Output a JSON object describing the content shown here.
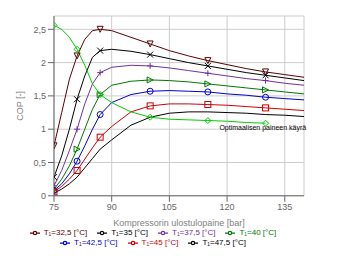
{
  "chart_data": {
    "type": "line",
    "xlabel": "Kompressorin ulostulopaine [bar]",
    "ylabel": "COP [-]",
    "xlim": [
      75,
      140
    ],
    "ylim": [
      0,
      2.7
    ],
    "xticks": [
      75,
      90,
      105,
      120,
      135
    ],
    "yticks": [
      0,
      {
        "value": 0.5,
        "label": "0,5"
      },
      1,
      {
        "value": 1.5,
        "label": "1,5"
      },
      2,
      {
        "value": 2.5,
        "label": "2,5"
      }
    ],
    "grid": true,
    "legend": "bottom",
    "series": [
      {
        "name": "T₁=32,5 [°C]",
        "color": "#5a0000",
        "marker": "triangle-down",
        "x": [
          75,
          77,
          79,
          81,
          83,
          85,
          87,
          90,
          95,
          100,
          105,
          110,
          115,
          120,
          125,
          130,
          135,
          140
        ],
        "values": [
          0.75,
          1.25,
          1.75,
          2.1,
          2.35,
          2.48,
          2.5,
          2.48,
          2.38,
          2.28,
          2.18,
          2.1,
          2.03,
          1.97,
          1.91,
          1.86,
          1.82,
          1.78
        ]
      },
      {
        "name": "T₁=35 [°C]",
        "color": "#000000",
        "marker": "x",
        "x": [
          75,
          77,
          79,
          81,
          83,
          85,
          87,
          90,
          95,
          100,
          105,
          110,
          115,
          120,
          125,
          130,
          135,
          140
        ],
        "values": [
          0.28,
          0.6,
          1.0,
          1.45,
          1.8,
          2.08,
          2.18,
          2.2,
          2.17,
          2.12,
          2.06,
          2.0,
          1.95,
          1.9,
          1.85,
          1.81,
          1.77,
          1.73
        ]
      },
      {
        "name": "T₁=37,5 [°C]",
        "color": "#7030a0",
        "marker": "plus",
        "x": [
          75,
          77,
          79,
          81,
          83,
          85,
          87,
          90,
          95,
          100,
          105,
          110,
          115,
          120,
          125,
          130,
          135,
          140
        ],
        "values": [
          0.15,
          0.38,
          0.68,
          1.0,
          1.38,
          1.68,
          1.85,
          1.93,
          1.96,
          1.95,
          1.92,
          1.88,
          1.84,
          1.8,
          1.76,
          1.73,
          1.69,
          1.66
        ]
      },
      {
        "name": "T₁=40 [°C]",
        "color": "#007700",
        "marker": "triangle-right",
        "x": [
          75,
          77,
          79,
          81,
          83,
          85,
          87,
          90,
          95,
          100,
          105,
          110,
          115,
          120,
          125,
          130,
          135,
          140
        ],
        "values": [
          0.1,
          0.25,
          0.45,
          0.7,
          1.0,
          1.3,
          1.52,
          1.66,
          1.72,
          1.74,
          1.73,
          1.71,
          1.68,
          1.65,
          1.62,
          1.59,
          1.56,
          1.53
        ]
      },
      {
        "name": "T₁=42,5 [°C]",
        "color": "#0000cc",
        "marker": "circle",
        "x": [
          75,
          77,
          79,
          81,
          83,
          85,
          87,
          90,
          95,
          100,
          105,
          110,
          115,
          120,
          125,
          130,
          135,
          140
        ],
        "values": [
          0.08,
          0.18,
          0.33,
          0.52,
          0.75,
          1.0,
          1.22,
          1.4,
          1.52,
          1.57,
          1.58,
          1.57,
          1.56,
          1.53,
          1.51,
          1.48,
          1.46,
          1.44
        ]
      },
      {
        "name": "T₁=45 [°C]",
        "color": "#cc0000",
        "marker": "square",
        "x": [
          75,
          77,
          79,
          81,
          83,
          85,
          87,
          90,
          95,
          100,
          105,
          110,
          115,
          120,
          125,
          130,
          135,
          140
        ],
        "values": [
          0.06,
          0.14,
          0.25,
          0.38,
          0.55,
          0.72,
          0.88,
          1.04,
          1.26,
          1.35,
          1.38,
          1.38,
          1.37,
          1.36,
          1.34,
          1.32,
          1.3,
          1.28
        ]
      },
      {
        "name": "T₁=47,5 [°C]",
        "color": "#000000",
        "marker": "none",
        "x": [
          75,
          77,
          79,
          81,
          83,
          85,
          87,
          90,
          95,
          100,
          105,
          110,
          115,
          120,
          125,
          130,
          135,
          140
        ],
        "values": [
          0.04,
          0.1,
          0.18,
          0.28,
          0.42,
          0.56,
          0.7,
          0.84,
          1.06,
          1.18,
          1.24,
          1.26,
          1.26,
          1.25,
          1.24,
          1.22,
          1.21,
          1.19
        ]
      },
      {
        "color": "#00cc00",
        "marker": "diamond",
        "x": [
          75,
          77,
          79,
          81,
          83,
          85,
          87,
          90,
          95,
          100,
          105,
          110,
          115,
          120,
          125,
          130
        ],
        "values": [
          2.56,
          2.5,
          2.38,
          2.2,
          1.96,
          1.68,
          1.52,
          1.4,
          1.26,
          1.18,
          1.15,
          1.14,
          1.13,
          1.12,
          1.1,
          1.09
        ]
      }
    ],
    "annotations": [
      {
        "text": "Optimaalisen paineen käyrä",
        "x": 118,
        "y": 1.02
      }
    ]
  }
}
